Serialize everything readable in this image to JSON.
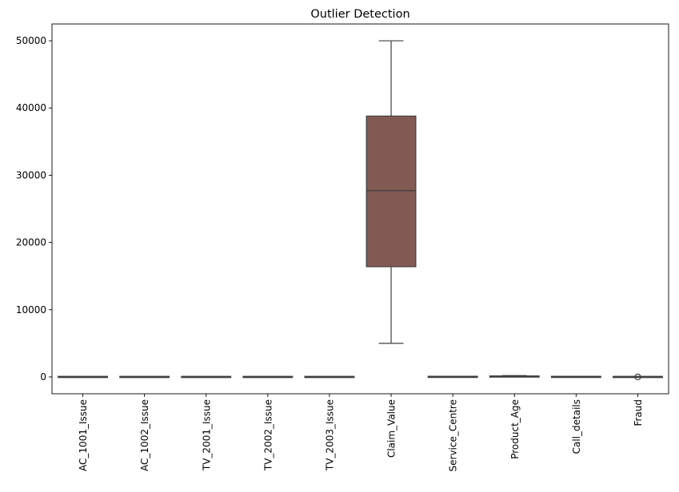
{
  "chart_data": {
    "type": "box",
    "title": "Outlier Detection",
    "xlabel": "",
    "ylabel": "",
    "ylim": [
      -2500,
      52500
    ],
    "yticks": [
      0,
      10000,
      20000,
      30000,
      40000,
      50000
    ],
    "ytick_labels": [
      "0",
      "10000",
      "20000",
      "30000",
      "40000",
      "50000"
    ],
    "grid": false,
    "categories": [
      "AC_1001_Issue",
      "AC_1002_Issue",
      "TV_2001_Issue",
      "TV_2002_Issue",
      "TV_2003_Issue",
      "Claim_Value",
      "Service_Centre",
      "Product_Age",
      "Call_details",
      "Fraud"
    ],
    "boxes": [
      {
        "category": "AC_1001_Issue",
        "whisker_low": 0,
        "q1": 0,
        "median": 0,
        "q3": 1,
        "whisker_high": 2,
        "outliers": [],
        "color": "#1f77b4"
      },
      {
        "category": "AC_1002_Issue",
        "whisker_low": 0,
        "q1": 0,
        "median": 0,
        "q3": 1,
        "whisker_high": 2,
        "outliers": [],
        "color": "#ff7f0e"
      },
      {
        "category": "TV_2001_Issue",
        "whisker_low": 0,
        "q1": 0,
        "median": 0,
        "q3": 1,
        "whisker_high": 2,
        "outliers": [],
        "color": "#2ca02c"
      },
      {
        "category": "TV_2002_Issue",
        "whisker_low": 0,
        "q1": 0,
        "median": 0,
        "q3": 1,
        "whisker_high": 2,
        "outliers": [],
        "color": "#d62728"
      },
      {
        "category": "TV_2003_Issue",
        "whisker_low": 0,
        "q1": 0,
        "median": 0,
        "q3": 1,
        "whisker_high": 2,
        "outliers": [],
        "color": "#9467bd"
      },
      {
        "category": "Claim_Value",
        "whisker_low": 5000,
        "q1": 16400,
        "median": 27700,
        "q3": 38800,
        "whisker_high": 50000,
        "outliers": [],
        "color": "#8c564b"
      },
      {
        "category": "Service_Centre",
        "whisker_low": 10,
        "q1": 11,
        "median": 12,
        "q3": 14,
        "whisker_high": 15,
        "outliers": [],
        "color": "#e377c2"
      },
      {
        "category": "Product_Age",
        "whisker_low": 3,
        "q1": 15,
        "median": 60,
        "q3": 110,
        "whisker_high": 200,
        "outliers": [],
        "color": "#7f7f7f"
      },
      {
        "category": "Call_details",
        "whisker_low": 0.5,
        "q1": 1.5,
        "median": 4,
        "q3": 16,
        "whisker_high": 30,
        "outliers": [],
        "color": "#bcbd22"
      },
      {
        "category": "Fraud",
        "whisker_low": 0,
        "q1": 0,
        "median": 0,
        "q3": 0,
        "whisker_high": 0,
        "outliers": [
          1
        ],
        "color": "#17becf"
      }
    ]
  }
}
